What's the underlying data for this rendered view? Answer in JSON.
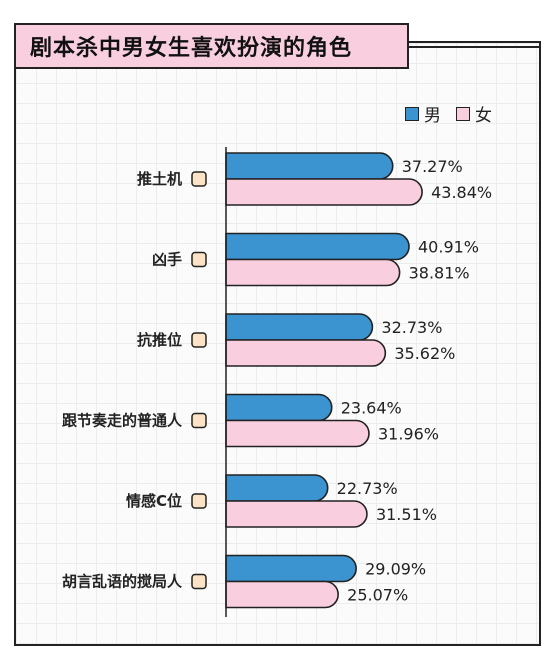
{
  "title": "剧本杀中男女生喜欢扮演的角色",
  "colors": {
    "male": "#3b93cf",
    "female": "#f9cfe0",
    "stroke": "#222222"
  },
  "chart_data": {
    "type": "bar",
    "orientation": "horizontal",
    "categories": [
      "推土机",
      "凶手",
      "抗推位",
      "跟节奏走的普通人",
      "情感C位",
      "胡言乱语的搅局人"
    ],
    "series": [
      {
        "name": "男",
        "values": [
          37.27,
          40.91,
          32.73,
          23.64,
          22.73,
          29.09
        ]
      },
      {
        "name": "女",
        "values": [
          43.84,
          38.81,
          35.62,
          31.96,
          31.51,
          25.07
        ]
      }
    ],
    "value_suffix": "%",
    "legend_position": "top-right",
    "grid": true
  }
}
